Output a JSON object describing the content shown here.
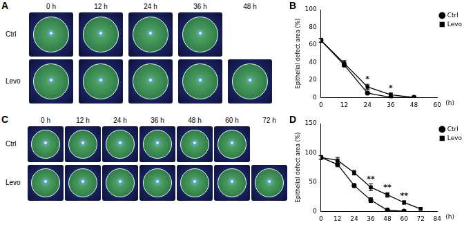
{
  "image_panels": [
    {
      "panel_label": "A",
      "time_labels": [
        "0 h",
        "12 h",
        "24 h",
        "36 h",
        "48 h"
      ],
      "rows": [
        {
          "label": "Ctrl",
          "times": [
            "0 h",
            "12 h",
            "24 h",
            "36 h"
          ]
        },
        {
          "label": "Levo",
          "times": [
            "0 h",
            "12 h",
            "24 h",
            "36 h",
            "48 h"
          ]
        }
      ]
    },
    {
      "panel_label": "C",
      "time_labels": [
        "0 h",
        "12 h",
        "24 h",
        "36 h",
        "48 h",
        "60 h",
        "72 h"
      ],
      "rows": [
        {
          "label": "Ctrl",
          "times": [
            "0 h",
            "12 h",
            "24 h",
            "36 h",
            "48 h",
            "60 h"
          ]
        },
        {
          "label": "Levo",
          "times": [
            "0 h",
            "12 h",
            "24 h",
            "36 h",
            "48 h",
            "60 h",
            "72 h"
          ]
        }
      ]
    }
  ],
  "chart_data": [
    {
      "panel_label": "B",
      "type": "line",
      "y_label": "Epithelial defect area (%)",
      "x_label": "(h)",
      "xlim": [
        0,
        60
      ],
      "xticks": [
        0,
        12,
        24,
        36,
        48,
        60
      ],
      "ylim": [
        0,
        100
      ],
      "yticks": [
        0,
        20,
        40,
        60,
        80,
        100
      ],
      "grid": false,
      "legend": "right",
      "series": [
        {
          "name": "Ctrl",
          "color": "#000000",
          "marker": "circle",
          "x": [
            0,
            12,
            24,
            36,
            48
          ],
          "values": [
            65,
            37,
            5,
            0,
            0
          ],
          "errors": [
            2,
            2,
            1,
            0.5,
            0
          ]
        },
        {
          "name": "Levo",
          "color": "#000000",
          "marker": "square",
          "x": [
            0,
            12,
            24,
            36,
            48
          ],
          "values": [
            65,
            39,
            12,
            3,
            0
          ],
          "errors": [
            2,
            3,
            3,
            2,
            0
          ]
        }
      ],
      "annotations": [
        {
          "x": 24,
          "text": "*"
        },
        {
          "x": 36,
          "text": "*"
        }
      ]
    },
    {
      "panel_label": "D",
      "type": "line",
      "y_label": "Epithelial defect area (%)",
      "x_label": "(h)",
      "xlim": [
        0,
        84
      ],
      "xticks": [
        0,
        12,
        24,
        36,
        48,
        60,
        72,
        84
      ],
      "ylim": [
        0,
        150
      ],
      "yticks": [
        0,
        50,
        100,
        150
      ],
      "grid": false,
      "legend": "right",
      "series": [
        {
          "name": "Ctrl",
          "color": "#000000",
          "marker": "circle",
          "x": [
            0,
            12,
            24,
            36,
            48,
            60
          ],
          "values": [
            92,
            80,
            44,
            19,
            2,
            0
          ],
          "errors": [
            3,
            4,
            3,
            4,
            1,
            0
          ]
        },
        {
          "name": "Levo",
          "color": "#000000",
          "marker": "square",
          "x": [
            0,
            12,
            24,
            36,
            48,
            60,
            72
          ],
          "values": [
            92,
            87,
            66,
            41,
            28,
            15,
            4
          ],
          "errors": [
            3,
            5,
            4,
            6,
            4,
            3,
            2
          ]
        }
      ],
      "annotations": [
        {
          "x": 36,
          "text": "**"
        },
        {
          "x": 48,
          "text": "**"
        },
        {
          "x": 60,
          "text": "**"
        }
      ]
    }
  ]
}
